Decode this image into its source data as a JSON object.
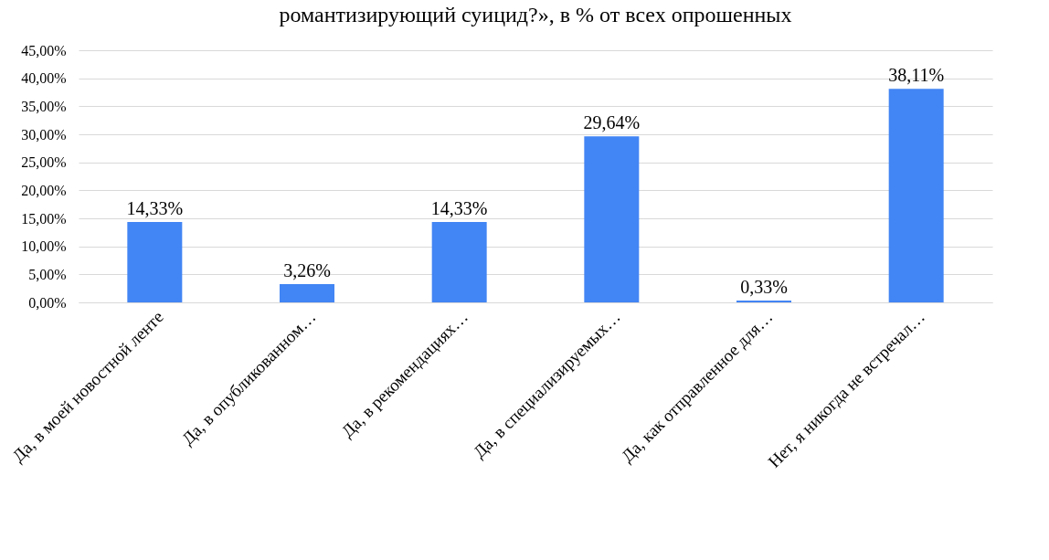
{
  "chart_data": {
    "type": "bar",
    "title": "романтизирующий суицид?», в % от всех опрошенных",
    "categories": [
      "Да, в моей новостной ленте",
      "Да, в опубликованном…",
      "Да, в рекомендациях…",
      "Да, в специализируемых…",
      "Да, как отправленное для…",
      "Нет, я никогда не встречал…"
    ],
    "values": [
      14.33,
      3.26,
      14.33,
      29.64,
      0.33,
      38.11
    ],
    "value_labels": [
      "14,33%",
      "3,26%",
      "14,33%",
      "29,64%",
      "0,33%",
      "38,11%"
    ],
    "color": "#4285f4",
    "ylim": [
      0,
      45
    ],
    "yticks": [
      {
        "value": 0,
        "label": "0,00%"
      },
      {
        "value": 5,
        "label": "5,00%"
      },
      {
        "value": 10,
        "label": "10,00%"
      },
      {
        "value": 15,
        "label": "15,00%"
      },
      {
        "value": 20,
        "label": "20,00%"
      },
      {
        "value": 25,
        "label": "25,00%"
      },
      {
        "value": 30,
        "label": "30,00%"
      },
      {
        "value": 35,
        "label": "35,00%"
      },
      {
        "value": 40,
        "label": "40,00%"
      },
      {
        "value": 45,
        "label": "45,00%"
      }
    ],
    "grid": true
  }
}
